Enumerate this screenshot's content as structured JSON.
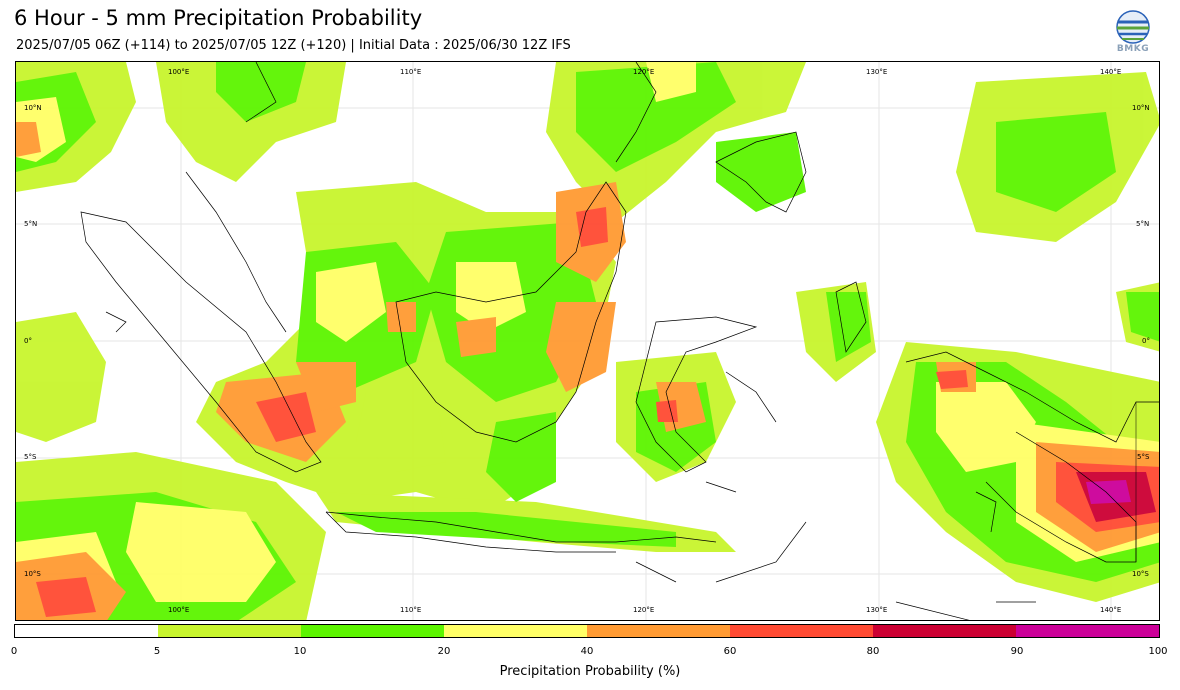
{
  "header": {
    "title": "6 Hour - 5 mm Precipitation Probability",
    "subtitle": "2025/07/05 06Z (+114) to 2025/07/05 12Z (+120) | Initial Data : 2025/06/30 12Z IFS",
    "logo_text": "BMKG"
  },
  "map": {
    "lon_labels": [
      "100°E",
      "110°E",
      "120°E",
      "130°E",
      "140°E"
    ],
    "lat_labels": [
      "10°N",
      "5°N",
      "0°",
      "5°S",
      "10°S"
    ]
  },
  "colorbar": {
    "title": "Precipitation Probability (%)",
    "ticks": [
      "0",
      "5",
      "10",
      "20",
      "40",
      "60",
      "80",
      "90",
      "100"
    ],
    "colors": [
      "#ffffff",
      "#c8f52d",
      "#5cf500",
      "#ffff66",
      "#ff9a32",
      "#ff4a32",
      "#cc0033",
      "#cc0099"
    ]
  }
}
